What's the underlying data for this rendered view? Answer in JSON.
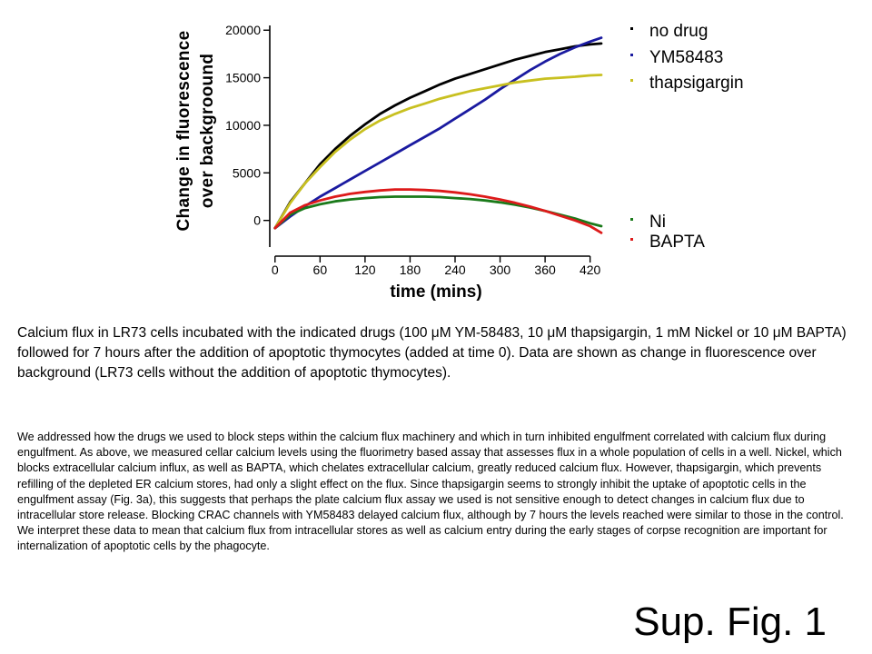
{
  "chart_data": {
    "type": "line",
    "xlabel": "time (mins)",
    "ylabel": "Change in fluorescence\nover backgroound",
    "xticks": [
      0,
      60,
      120,
      180,
      240,
      300,
      360,
      420
    ],
    "yticks": [
      0,
      5000,
      10000,
      15000,
      20000
    ],
    "xlim": [
      -7,
      441
    ],
    "ylim": [
      -2800,
      20500
    ],
    "grid": false,
    "legend_position": "right",
    "series": [
      {
        "name": "no drug",
        "color": "#000000",
        "x": [
          0,
          20,
          40,
          60,
          80,
          100,
          120,
          140,
          160,
          180,
          200,
          220,
          240,
          260,
          280,
          300,
          320,
          340,
          360,
          380,
          400,
          420,
          435
        ],
        "y": [
          -800,
          1900,
          3900,
          5900,
          7500,
          8900,
          10100,
          11200,
          12100,
          12900,
          13600,
          14300,
          14900,
          15400,
          15900,
          16400,
          16900,
          17300,
          17700,
          18000,
          18300,
          18500,
          18600
        ]
      },
      {
        "name": "YM58483",
        "color": "#1a1aa0",
        "x": [
          0,
          20,
          40,
          60,
          80,
          100,
          120,
          140,
          160,
          180,
          200,
          220,
          240,
          260,
          280,
          300,
          320,
          340,
          360,
          380,
          400,
          420,
          435
        ],
        "y": [
          -800,
          400,
          1500,
          2500,
          3400,
          4300,
          5200,
          6100,
          7000,
          7900,
          8800,
          9700,
          10700,
          11700,
          12700,
          13800,
          14800,
          15800,
          16700,
          17500,
          18200,
          18800,
          19200
        ]
      },
      {
        "name": "thapsigargin",
        "color": "#c8c020",
        "x": [
          0,
          20,
          40,
          60,
          80,
          100,
          120,
          140,
          160,
          180,
          200,
          220,
          240,
          260,
          280,
          300,
          320,
          340,
          360,
          380,
          400,
          420,
          435
        ],
        "y": [
          -800,
          1800,
          3900,
          5600,
          7200,
          8500,
          9600,
          10500,
          11200,
          11800,
          12300,
          12800,
          13200,
          13600,
          13900,
          14200,
          14500,
          14700,
          14900,
          15000,
          15100,
          15250,
          15300
        ]
      },
      {
        "name": "Ni",
        "color": "#1a7a1a",
        "x": [
          0,
          20,
          40,
          60,
          80,
          100,
          120,
          140,
          160,
          180,
          200,
          220,
          240,
          260,
          280,
          300,
          320,
          340,
          360,
          380,
          400,
          420,
          435
        ],
        "y": [
          -800,
          600,
          1300,
          1700,
          2000,
          2200,
          2350,
          2450,
          2500,
          2500,
          2500,
          2450,
          2350,
          2250,
          2100,
          1900,
          1650,
          1350,
          1000,
          600,
          200,
          -300,
          -600
        ]
      },
      {
        "name": "BAPTA",
        "color": "#dd1a1a",
        "x": [
          0,
          20,
          40,
          60,
          80,
          100,
          120,
          140,
          160,
          180,
          200,
          220,
          240,
          260,
          280,
          300,
          320,
          340,
          360,
          380,
          400,
          420,
          435
        ],
        "y": [
          -800,
          800,
          1600,
          2100,
          2500,
          2800,
          3000,
          3150,
          3250,
          3250,
          3200,
          3100,
          2950,
          2750,
          2500,
          2200,
          1850,
          1450,
          1000,
          500,
          0,
          -600,
          -1300
        ]
      }
    ]
  },
  "legend": {
    "items": [
      {
        "label": "no drug",
        "color": "#000000"
      },
      {
        "label": "YM58483",
        "color": "#1a1aa0"
      },
      {
        "label": "thapsigargin",
        "color": "#c8c020"
      },
      {
        "label": "Ni",
        "color": "#1a7a1a"
      },
      {
        "label": "BAPTA",
        "color": "#dd1a1a"
      }
    ]
  },
  "caption": "Calcium flux in LR73 cells incubated with the indicated drugs (100 μM YM-58483, 10 μM thapsigargin, 1 mM Nickel or 10 μM BAPTA) followed for 7 hours after the addition of apoptotic thymocytes (added at time 0).  Data are shown as change in fluorescence over background (LR73 cells without the addition of apoptotic thymocytes).",
  "body_text": "We addressed how the drugs we used to block steps within the calcium flux machinery and which in turn inhibited engulfment correlated with calcium flux during engulfment. As above, we measured cellar calcium levels using the fluorimetry based assay that  assesses flux in  a whole population of cells in a well.  Nickel, which blocks extracellular calcium influx, as well as BAPTA, which chelates extracellular calcium, greatly reduced calcium flux.  However, thapsigargin, which prevents refilling of the depleted ER calcium stores, had only a slight effect on the  flux.  Since thapsigargin seems to strongly inhibit the uptake of apoptotic cells in the engulfment assay (Fig. 3a), this suggests that perhaps the  plate calcium flux assay we used is not sensitive enough to detect changes in calcium flux due to intracellular store release.  Blocking CRAC channels with YM58483 delayed calcium flux, although by 7 hours the levels reached were similar to those in the control.  We interpret these  data to mean that calcium flux from intracellular stores as well as calcium entry during the early stages of corpse recognition are important for  internalization of apoptotic cells by the phagocyte.",
  "figure_label": "Sup. Fig. 1"
}
